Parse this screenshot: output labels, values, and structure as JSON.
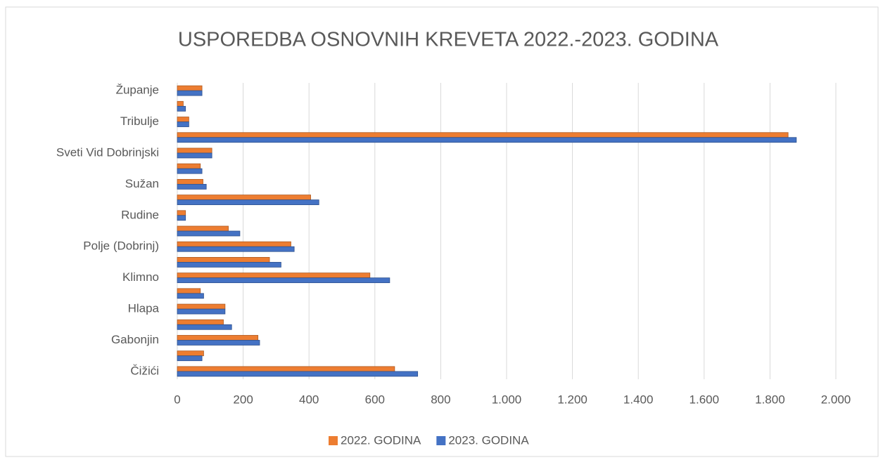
{
  "chart_data": {
    "type": "hbar",
    "title": "USPOREDBA OSNOVNIH KREVETA 2022.-2023. GODINA",
    "categories": [
      "Čižići",
      null,
      "Gabonjin",
      null,
      "Hlapa",
      null,
      "Klimno",
      null,
      "Polje (Dobrinj)",
      null,
      "Rudine",
      null,
      "Sužan",
      null,
      "Sveti Vid Dobrinjski",
      null,
      "Tribulje",
      null,
      "Županje"
    ],
    "series": [
      {
        "name": "2022. GODINA",
        "color": "#ed7d31",
        "values": [
          660,
          80,
          245,
          140,
          145,
          70,
          585,
          280,
          345,
          155,
          25,
          405,
          78,
          70,
          105,
          1855,
          35,
          18,
          75
        ]
      },
      {
        "name": "2023. GODINA",
        "color": "#4472c4",
        "values": [
          730,
          75,
          250,
          165,
          145,
          80,
          645,
          315,
          355,
          190,
          25,
          430,
          88,
          75,
          105,
          1880,
          35,
          25,
          75
        ]
      }
    ],
    "xlim": [
      0,
      2000
    ],
    "xticks": [
      0,
      200,
      400,
      600,
      800,
      {
        "value": 1000,
        "label": "1.000"
      },
      {
        "value": 1200,
        "label": "1.200"
      },
      {
        "value": 1400,
        "label": "1.400"
      },
      {
        "value": 1600,
        "label": "1.600"
      },
      {
        "value": 1800,
        "label": "1.800"
      },
      {
        "value": 2000,
        "label": "2.000"
      }
    ],
    "grid": true,
    "legend": "bottom"
  }
}
